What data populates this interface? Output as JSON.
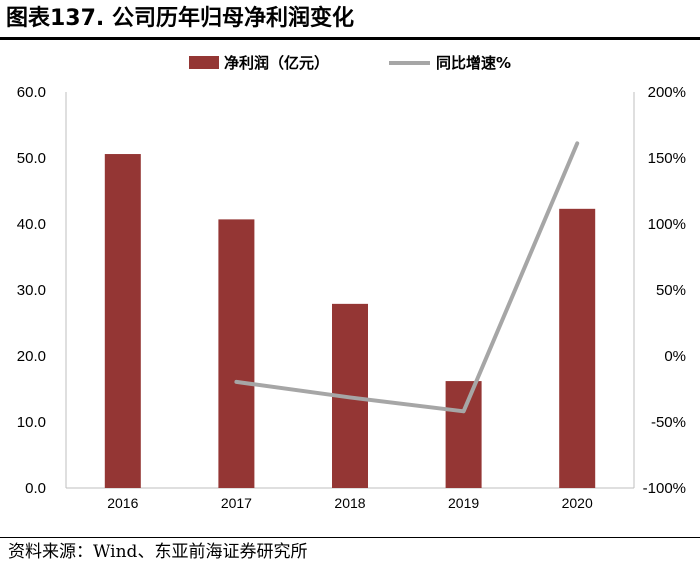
{
  "figure": {
    "title": "图表137. 公司历年归母净利润变化",
    "source": "资料来源：Wind、东亚前海证券研究所"
  },
  "chart_data": {
    "type": "bar",
    "categories": [
      "2016",
      "2017",
      "2018",
      "2019",
      "2020"
    ],
    "series": [
      {
        "name": "净利润（亿元）",
        "kind": "bar",
        "axis": "left",
        "color": "#943634",
        "values": [
          50.6,
          40.7,
          27.9,
          16.2,
          42.3
        ]
      },
      {
        "name": "同比增速%",
        "kind": "line",
        "axis": "right",
        "color": "#a6a6a6",
        "values": [
          null,
          -19.6,
          -31.4,
          -41.9,
          161.1
        ]
      }
    ],
    "y_left": {
      "min": 0,
      "max": 60,
      "step": 10,
      "tick_labels": [
        "0.0",
        "10.0",
        "20.0",
        "30.0",
        "40.0",
        "50.0",
        "60.0"
      ]
    },
    "y_right": {
      "min": -100,
      "max": 200,
      "step": 50,
      "tick_labels": [
        "-100%",
        "-50%",
        "0%",
        "50%",
        "100%",
        "150%",
        "200%"
      ]
    },
    "legend_position": "top-center",
    "grid": false
  }
}
